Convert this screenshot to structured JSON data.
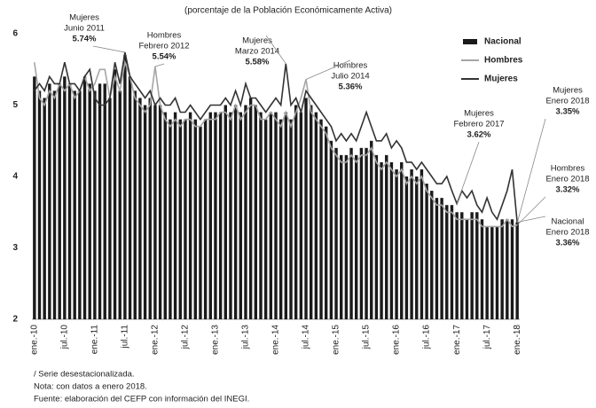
{
  "chart_data": {
    "type": "bar_line",
    "title": "(porcentaje de la Población Económicamente Activa)",
    "categories": [
      "ene.-10",
      null,
      null,
      null,
      null,
      null,
      "jul.-10",
      null,
      null,
      null,
      null,
      null,
      "ene.-11",
      null,
      null,
      null,
      null,
      null,
      "jul.-11",
      null,
      null,
      null,
      null,
      null,
      "ene.-12",
      null,
      null,
      null,
      null,
      null,
      "jul.-12",
      null,
      null,
      null,
      null,
      null,
      "ene.-13",
      null,
      null,
      null,
      null,
      null,
      "jul.-13",
      null,
      null,
      null,
      null,
      null,
      "ene.-14",
      null,
      null,
      null,
      null,
      null,
      "jul.-14",
      null,
      null,
      null,
      null,
      null,
      "ene.-15",
      null,
      null,
      null,
      null,
      null,
      "jul.-15",
      null,
      null,
      null,
      null,
      null,
      "ene.-16",
      null,
      null,
      null,
      null,
      null,
      "jul.-16",
      null,
      null,
      null,
      null,
      null,
      "ene.-17",
      null,
      null,
      null,
      null,
      null,
      "jul.-17",
      null,
      null,
      null,
      null,
      null,
      "ene.-18"
    ],
    "series": [
      {
        "name": "Nacional",
        "kind": "bar",
        "color": "#1a1a1a",
        "values": [
          5.4,
          5.2,
          5.1,
          5.3,
          5.2,
          5.3,
          5.4,
          5.3,
          5.2,
          5.2,
          5.4,
          5.3,
          5.2,
          5.3,
          5.3,
          5.1,
          5.5,
          5.2,
          5.7,
          5.4,
          5.2,
          5.1,
          5.0,
          5.1,
          5.0,
          5.0,
          4.9,
          4.8,
          4.9,
          4.8,
          4.8,
          4.9,
          4.8,
          4.7,
          4.8,
          4.9,
          4.9,
          4.9,
          5.0,
          4.9,
          5.0,
          4.9,
          5.0,
          5.1,
          5.0,
          4.9,
          4.8,
          4.9,
          4.9,
          4.8,
          4.9,
          4.8,
          5.0,
          4.9,
          5.1,
          5.0,
          4.9,
          4.8,
          4.7,
          4.5,
          4.4,
          4.3,
          4.3,
          4.4,
          4.3,
          4.4,
          4.4,
          4.5,
          4.3,
          4.2,
          4.3,
          4.2,
          4.1,
          4.2,
          4.0,
          4.1,
          4.0,
          4.1,
          3.9,
          3.8,
          3.7,
          3.7,
          3.6,
          3.6,
          3.5,
          3.5,
          3.4,
          3.5,
          3.5,
          3.4,
          3.3,
          3.3,
          3.3,
          3.4,
          3.4,
          3.4,
          3.36
        ]
      },
      {
        "name": "Hombres",
        "kind": "line",
        "color": "#a6a6a6",
        "values": [
          5.6,
          5.1,
          5.0,
          5.2,
          5.1,
          5.3,
          5.2,
          5.3,
          5.1,
          5.2,
          5.4,
          5.2,
          5.3,
          5.5,
          5.5,
          5.1,
          5.4,
          5.2,
          5.6,
          5.4,
          5.1,
          5.0,
          4.9,
          5.0,
          5.54,
          5.0,
          4.8,
          4.7,
          4.8,
          4.7,
          4.8,
          4.8,
          4.7,
          4.7,
          4.8,
          4.8,
          4.8,
          4.9,
          4.9,
          4.8,
          5.0,
          4.8,
          4.9,
          5.0,
          5.0,
          4.8,
          4.8,
          4.9,
          4.8,
          4.7,
          4.9,
          4.7,
          4.9,
          5.1,
          5.36,
          4.9,
          4.8,
          4.7,
          4.6,
          4.4,
          4.3,
          4.2,
          4.2,
          4.3,
          4.2,
          4.3,
          4.3,
          4.4,
          4.2,
          4.1,
          4.2,
          4.1,
          4.0,
          4.1,
          3.9,
          4.0,
          3.9,
          4.0,
          3.8,
          3.7,
          3.6,
          3.6,
          3.5,
          3.5,
          3.4,
          3.4,
          3.4,
          3.4,
          3.4,
          3.3,
          3.3,
          3.3,
          3.3,
          3.3,
          3.4,
          3.3,
          3.32
        ]
      },
      {
        "name": "Mujeres",
        "kind": "line",
        "color": "#333333",
        "values": [
          5.2,
          5.3,
          5.2,
          5.4,
          5.3,
          5.3,
          5.6,
          5.3,
          5.3,
          5.2,
          5.4,
          5.5,
          5.1,
          5.0,
          5.0,
          5.1,
          5.6,
          5.3,
          5.74,
          5.4,
          5.3,
          5.2,
          5.1,
          5.2,
          5.0,
          5.1,
          5.0,
          5.0,
          5.1,
          4.9,
          4.9,
          5.0,
          4.9,
          4.8,
          4.9,
          5.0,
          5.0,
          5.0,
          5.1,
          5.0,
          5.2,
          5.0,
          5.3,
          5.1,
          5.1,
          5.0,
          4.9,
          5.0,
          5.1,
          5.0,
          5.58,
          5.0,
          5.1,
          4.9,
          5.2,
          5.1,
          5.0,
          4.9,
          4.8,
          4.7,
          4.5,
          4.6,
          4.5,
          4.6,
          4.5,
          4.7,
          4.9,
          4.7,
          4.5,
          4.5,
          4.6,
          4.4,
          4.5,
          4.4,
          4.2,
          4.2,
          4.1,
          4.2,
          4.1,
          4.0,
          3.9,
          3.9,
          4.0,
          3.8,
          3.62,
          3.8,
          3.7,
          3.8,
          3.6,
          3.5,
          3.7,
          3.5,
          3.4,
          3.6,
          3.8,
          4.1,
          3.35
        ]
      }
    ],
    "ylim": [
      2,
      6
    ],
    "yticks": [
      2,
      3,
      4,
      5,
      6
    ],
    "annotations": [
      {
        "lines": [
          "Mujeres",
          "Junio 2011",
          "5.74%"
        ]
      },
      {
        "lines": [
          "Hombres",
          "Febrero 2012",
          "5.54%"
        ]
      },
      {
        "lines": [
          "Mujeres",
          "Marzo 2014",
          "5.58%"
        ]
      },
      {
        "lines": [
          "Hombres",
          "Julio 2014",
          "5.36%"
        ]
      },
      {
        "lines": [
          "Mujeres",
          "Febrero 2017",
          "3.62%"
        ]
      },
      {
        "lines": [
          "Mujeres",
          "Enero 2018",
          "3.35%"
        ]
      },
      {
        "lines": [
          "Hombres",
          "Enero 2018",
          "3.32%"
        ]
      },
      {
        "lines": [
          "Nacional",
          "Enero 2018",
          "3.36%"
        ]
      }
    ],
    "notes": [
      "/ Serie desestacionalizada.",
      "Nota: con datos a enero 2018.",
      "Fuente: elaboración del CEFP con información del INEGI."
    ]
  }
}
